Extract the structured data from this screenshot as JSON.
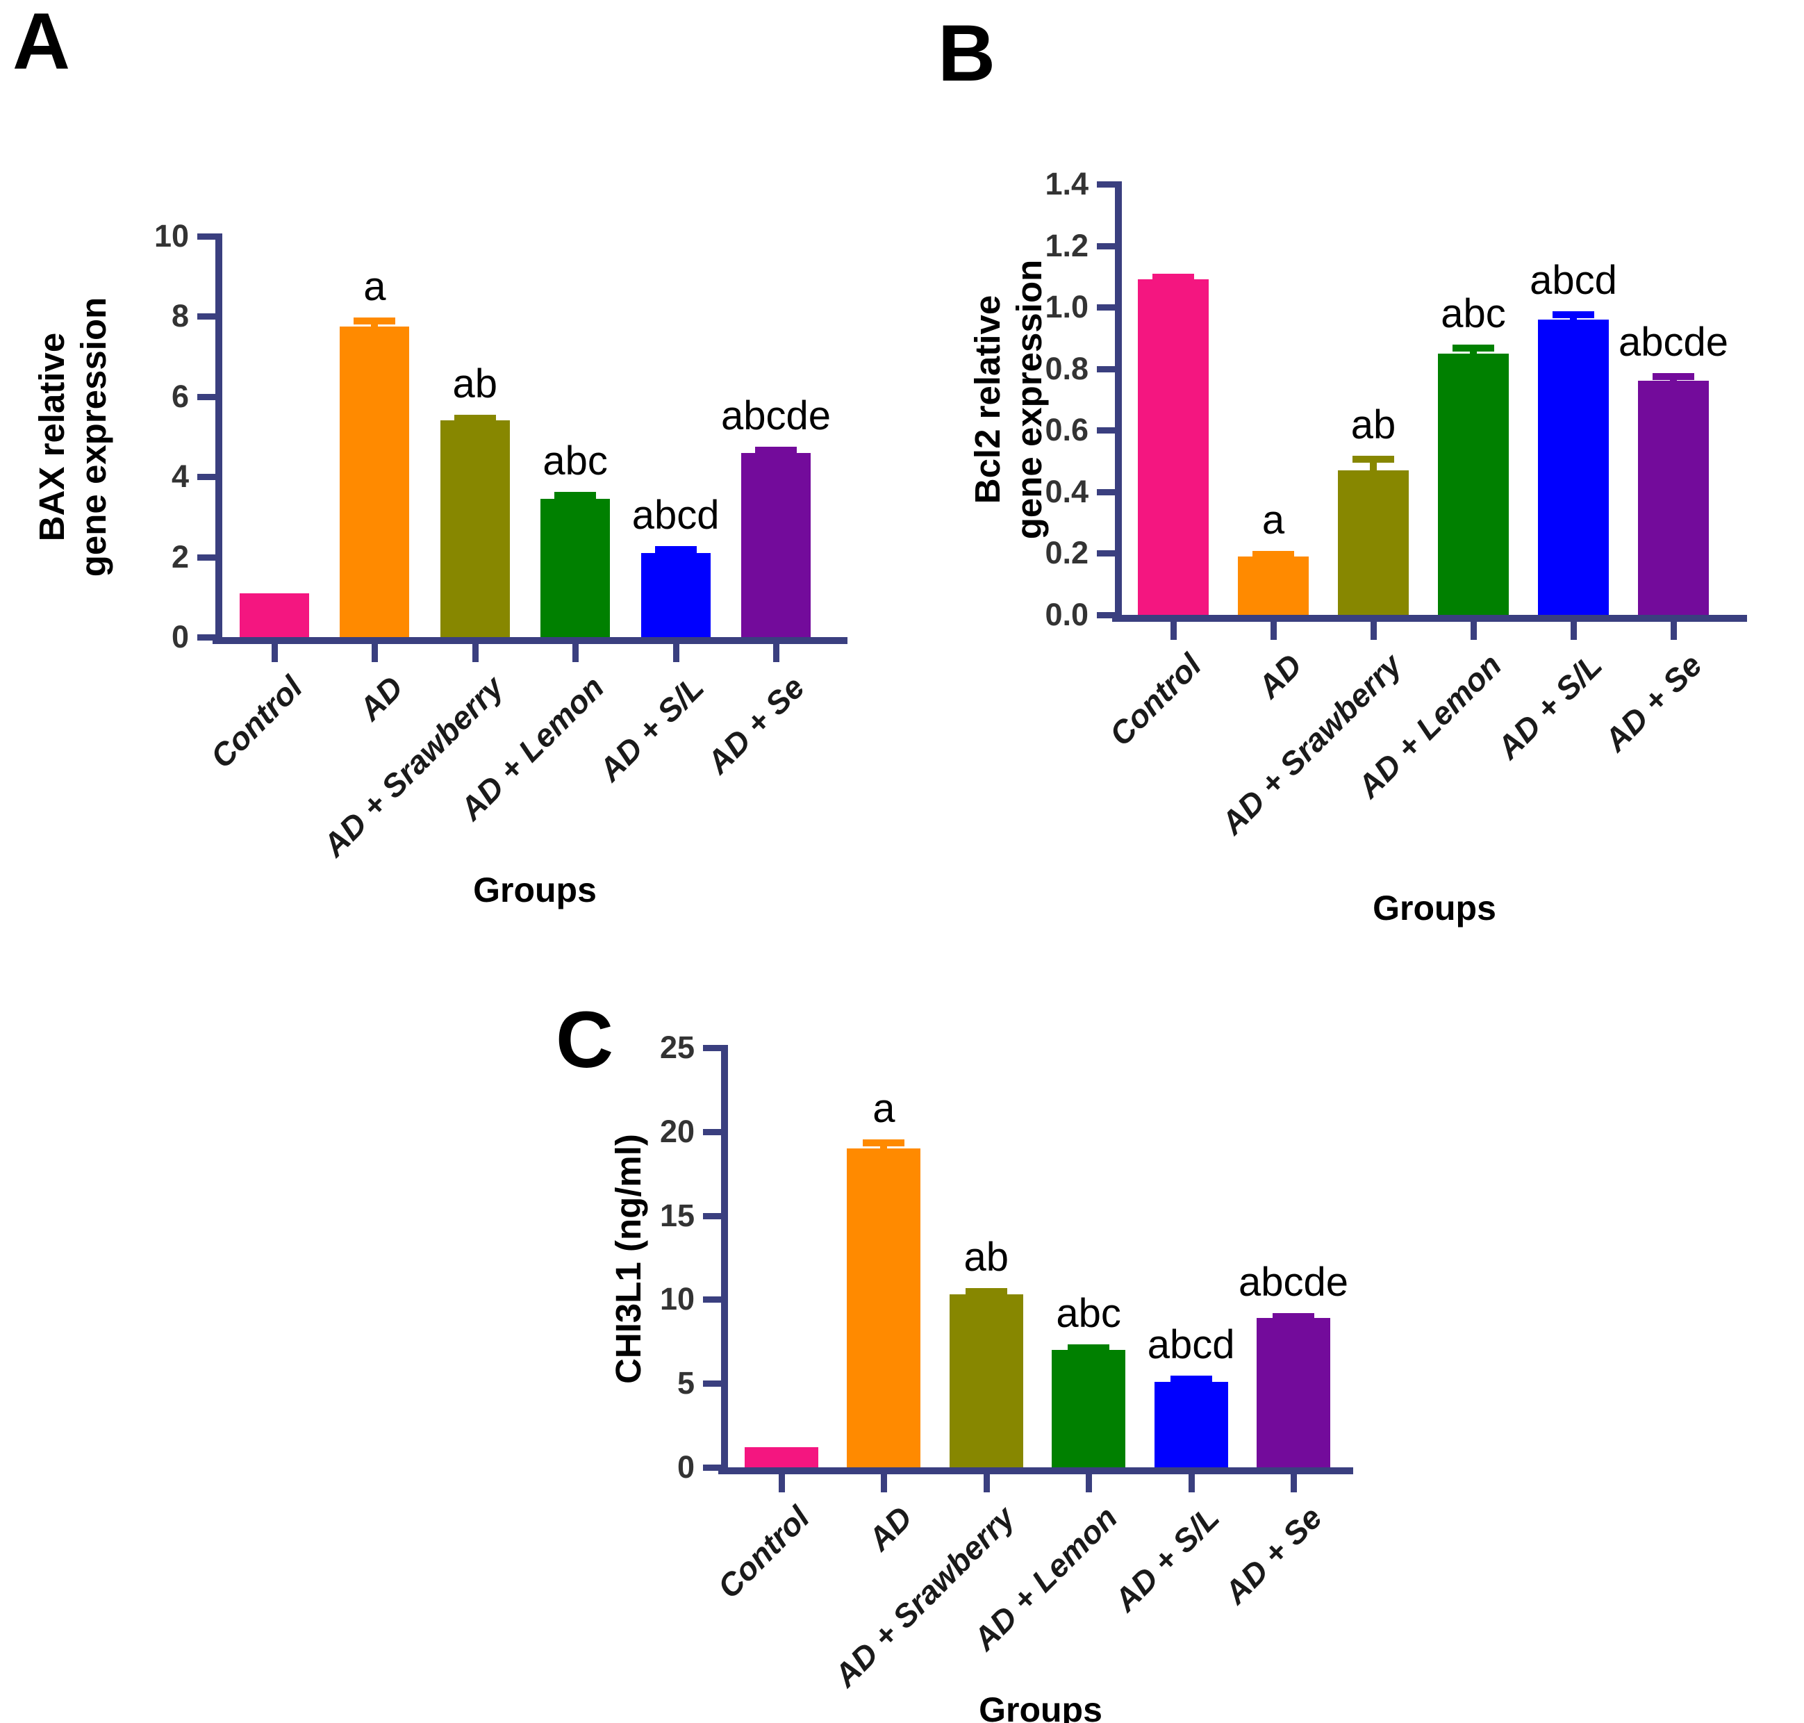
{
  "style": {
    "background": "#FFFFFF",
    "axis_color": "#3A3F7F",
    "tick_label_color": "#333333",
    "category_label_color": "#1A1A1A",
    "sig_label_color": "#000000",
    "bar_palette": [
      "#F41680",
      "#FF8A00",
      "#878700",
      "#008000",
      "#0000FF",
      "#730B9B"
    ]
  },
  "panels": [
    {
      "letter": "A",
      "chart_data": {
        "type": "bar",
        "ylabel": "BAX relative\ngene expression",
        "xlabel": "Groups",
        "categories": [
          "Control",
          "AD",
          "AD + Srawberry",
          "AD + Lemon",
          "AD + S/L",
          "AD + Se"
        ],
        "values": [
          1.1,
          7.75,
          5.4,
          3.45,
          2.1,
          4.6
        ],
        "errors": [
          0,
          0.13,
          0.06,
          0.08,
          0.08,
          0.07
        ],
        "sig_labels": [
          "",
          "a",
          "ab",
          "abc",
          "abcd",
          "abcde"
        ],
        "ylim": [
          0,
          10
        ],
        "yticks": [
          0,
          2,
          4,
          6,
          8,
          10
        ],
        "ytick_labels": [
          "0",
          "2",
          "4",
          "6",
          "8",
          "10"
        ],
        "bar_colors": [
          "#F41680",
          "#FF8A00",
          "#878700",
          "#008000",
          "#0000FF",
          "#730B9B"
        ],
        "grid": "off",
        "legend": "none"
      }
    },
    {
      "letter": "B",
      "chart_data": {
        "type": "bar",
        "ylabel": "Bcl2 relative\ngene expression",
        "xlabel": "Groups",
        "categories": [
          "Control",
          "AD",
          "AD + Srawberry",
          "AD + Lemon",
          "AD + S/L",
          "AD + Se"
        ],
        "values": [
          1.09,
          0.19,
          0.47,
          0.85,
          0.96,
          0.76
        ],
        "errors": [
          0.008,
          0.006,
          0.035,
          0.018,
          0.015,
          0.015
        ],
        "sig_labels": [
          "",
          "a",
          "ab",
          "abc",
          "abcd",
          "abcde"
        ],
        "ylim": [
          0,
          1.4
        ],
        "yticks": [
          0,
          0.2,
          0.4,
          0.6,
          0.8,
          1.0,
          1.2,
          1.4
        ],
        "ytick_labels": [
          "0.0",
          "0.2",
          "0.4",
          "0.6",
          "0.8",
          "1.0",
          "1.2",
          "1.4"
        ],
        "bar_colors": [
          "#F41680",
          "#FF8A00",
          "#878700",
          "#008000",
          "#0000FF",
          "#730B9B"
        ],
        "grid": "off",
        "legend": "none"
      }
    },
    {
      "letter": "C",
      "chart_data": {
        "type": "bar",
        "ylabel": "CHI3L1 (ng/ml)",
        "xlabel": "Groups",
        "categories": [
          "Control",
          "AD",
          "AD + Srawberry",
          "AD + Lemon",
          "AD + S/L",
          "AD + Se"
        ],
        "values": [
          1.2,
          19.0,
          10.3,
          7.0,
          5.1,
          8.9
        ],
        "errors": [
          0,
          0.35,
          0.18,
          0.12,
          0.15,
          0.08
        ],
        "sig_labels": [
          "",
          "a",
          "ab",
          "abc",
          "abcd",
          "abcde"
        ],
        "ylim": [
          0,
          25
        ],
        "yticks": [
          0,
          5,
          10,
          15,
          20,
          25
        ],
        "ytick_labels": [
          "0",
          "5",
          "10",
          "15",
          "20",
          "25"
        ],
        "bar_colors": [
          "#F41680",
          "#FF8A00",
          "#878700",
          "#008000",
          "#0000FF",
          "#730B9B"
        ],
        "grid": "off",
        "legend": "none"
      }
    }
  ]
}
